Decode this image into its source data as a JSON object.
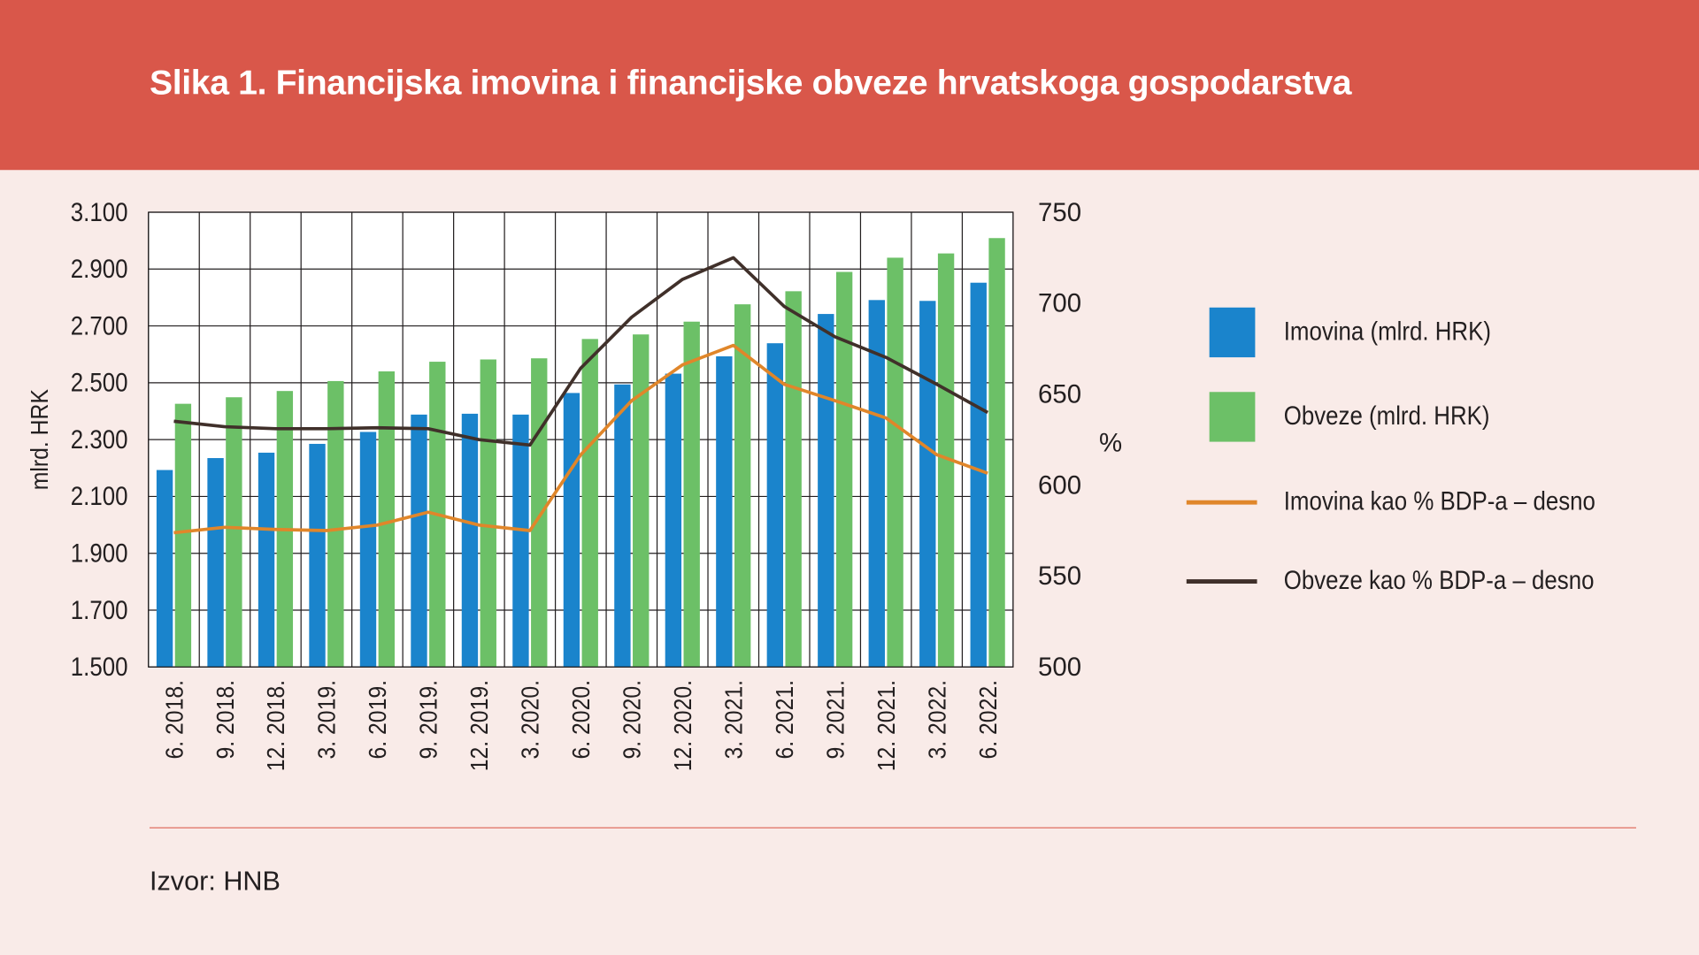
{
  "title": "Slika 1. Financijska imovina i financijske obveze hrvatskoga gospodarstva",
  "source": "Izvor: HNB",
  "colors": {
    "header": "#d9574a",
    "background": "#f9ebe8",
    "imovina": "#1a84cc",
    "obveze": "#6cc067",
    "imovina_pct": "#e0862a",
    "obveze_pct": "#40302a"
  },
  "chart_data": {
    "type": "bar+line",
    "categories": [
      "6. 2018.",
      "9. 2018.",
      "12. 2018.",
      "3. 2019.",
      "6. 2019.",
      "9. 2019.",
      "12. 2019.",
      "3. 2020.",
      "6. 2020.",
      "9. 2020.",
      "12. 2020.",
      "3. 2021.",
      "6. 2021.",
      "9. 2021.",
      "12. 2021.",
      "3. 2022.",
      "6. 2022."
    ],
    "ylabel": "mlrd. HRK",
    "ylim": [
      1500,
      3100
    ],
    "yticks": [
      "1.500",
      "1.700",
      "1.900",
      "2.100",
      "2.300",
      "2.500",
      "2.700",
      "2.900",
      "3.100"
    ],
    "y2label": "%",
    "y2lim": [
      500,
      750
    ],
    "y2ticks": [
      "500",
      "550",
      "600",
      "650",
      "700",
      "750"
    ],
    "grid": true,
    "legend": "right",
    "series": [
      {
        "name": "Imovina (mlrd. HRK)",
        "type": "bar",
        "axis": "left",
        "values": [
          2193,
          2235,
          2254,
          2285,
          2327,
          2388,
          2391,
          2388,
          2464,
          2494,
          2532,
          2593,
          2639,
          2742,
          2791,
          2788,
          2852
        ]
      },
      {
        "name": "Obveze (mlrd. HRK)",
        "type": "bar",
        "axis": "left",
        "values": [
          2426,
          2449,
          2471,
          2506,
          2540,
          2574,
          2582,
          2586,
          2654,
          2670,
          2715,
          2776,
          2822,
          2890,
          2940,
          2955,
          3009
        ]
      },
      {
        "name": "Imovina kao % BDP-a – desno",
        "type": "line",
        "axis": "right",
        "values": [
          573.8,
          576.8,
          575.6,
          575.0,
          578.0,
          585.1,
          578.0,
          575.0,
          616.7,
          646.4,
          666.1,
          676.8,
          655.4,
          646.4,
          636.9,
          616.7,
          606.5
        ]
      },
      {
        "name": "Obveze kao % BDP-a – desno",
        "type": "line",
        "axis": "right",
        "values": [
          635.1,
          632.1,
          631.0,
          631.0,
          631.5,
          631.0,
          625.0,
          622.0,
          664.3,
          692.3,
          713.1,
          725.0,
          698.2,
          681.5,
          670.2,
          655.4,
          639.9
        ]
      }
    ]
  }
}
